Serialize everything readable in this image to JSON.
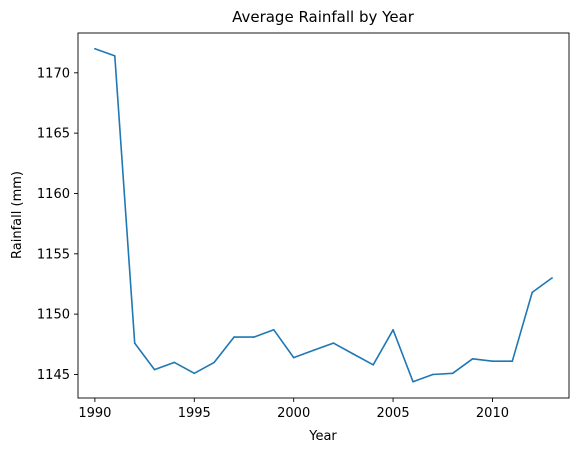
{
  "chart_data": {
    "type": "line",
    "title": "Average Rainfall by Year",
    "xlabel": "Year",
    "ylabel": "Rainfall (mm)",
    "xlim": [
      1989.15,
      2013.85
    ],
    "ylim": [
      1143.05,
      1173.3
    ],
    "xticks": [
      1990,
      1995,
      2000,
      2005,
      2010
    ],
    "yticks": [
      1145,
      1150,
      1155,
      1160,
      1165,
      1170
    ],
    "grid": false,
    "series": [
      {
        "name": "Average Rainfall",
        "color": "#1f77b4",
        "x": [
          1990,
          1991,
          1992,
          1993,
          1994,
          1995,
          1996,
          1997,
          1998,
          1999,
          2000,
          2001,
          2002,
          2003,
          2004,
          2005,
          2006,
          2007,
          2008,
          2009,
          2010,
          2011,
          2012,
          2013
        ],
        "y": [
          1172.0,
          1171.4,
          1147.6,
          1145.4,
          1146.0,
          1145.1,
          1146.0,
          1148.1,
          1148.1,
          1148.7,
          1146.4,
          1147.0,
          1147.6,
          1146.7,
          1145.8,
          1148.7,
          1144.4,
          1145.0,
          1145.1,
          1146.3,
          1146.1,
          1146.1,
          1151.8,
          1153.0
        ]
      }
    ]
  }
}
